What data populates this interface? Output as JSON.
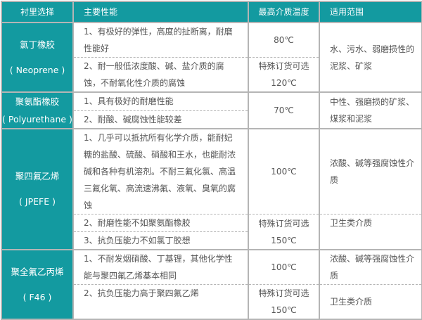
{
  "colors": {
    "header_bg": "#139aa0",
    "text": "#555555",
    "border": "#b5b5b5"
  },
  "header": [
    "衬里选择",
    "主要性能",
    "最高介质温度",
    "适用范围"
  ],
  "rows": [
    {
      "name": "氯丁橡胶",
      "sub": "( Neoprene )",
      "props": [
        "1、有极好的弹性，高度的扯断离，耐磨性能好",
        "2、耐一般低浓度酸、碱、盐介质的腐蚀，不耐氧化性介质的腐蚀"
      ],
      "temps": [
        "80℃",
        "特殊订货可选",
        "120℃"
      ],
      "uses": [
        "水、污水、弱磨损性的泥浆、矿浆"
      ]
    },
    {
      "name": "聚氨酯橡胶",
      "sub": "( Polyurethane )",
      "props": [
        "1、具有极好的耐磨性能",
        "2、耐酸、碱腐蚀性能较差"
      ],
      "temps": [
        "70℃"
      ],
      "uses": [
        "中性、强磨损的矿浆、煤浆和泥浆"
      ]
    },
    {
      "name": "聚四氟乙烯",
      "sub": "( JPEFE )",
      "props": [
        "1、几乎可以抵抗所有化学介质，能耐妃糖的盐酸、硫酸、硝酸和王水，也能耐浓碱和各种有机溶剂。不耐三氟化氯、高温三氟化氧、高流速沸氟、液氧、臭氧的腐蚀",
        "2、耐磨性能不如聚氨酯橡胶",
        "3、抗负压能力不如氯丁胶想"
      ],
      "temps": [
        "100℃",
        "特殊订货可选",
        "150℃"
      ],
      "uses": [
        "浓酸、碱等强腐蚀性介质",
        "卫生类介质"
      ]
    },
    {
      "name": "聚全氟乙丙烯",
      "sub": "( F46 )",
      "props": [
        "1、不耐发烟硝酸、丁基锂，其他化学性能与聚四氟乙烯基本相同",
        "2、抗负压能力高于聚四氟乙烯"
      ],
      "temps": [
        "100℃",
        "特殊订货可选",
        "150℃"
      ],
      "uses": [
        "浓酸、碱等强腐蚀性介质",
        "卫生类介质"
      ]
    }
  ]
}
